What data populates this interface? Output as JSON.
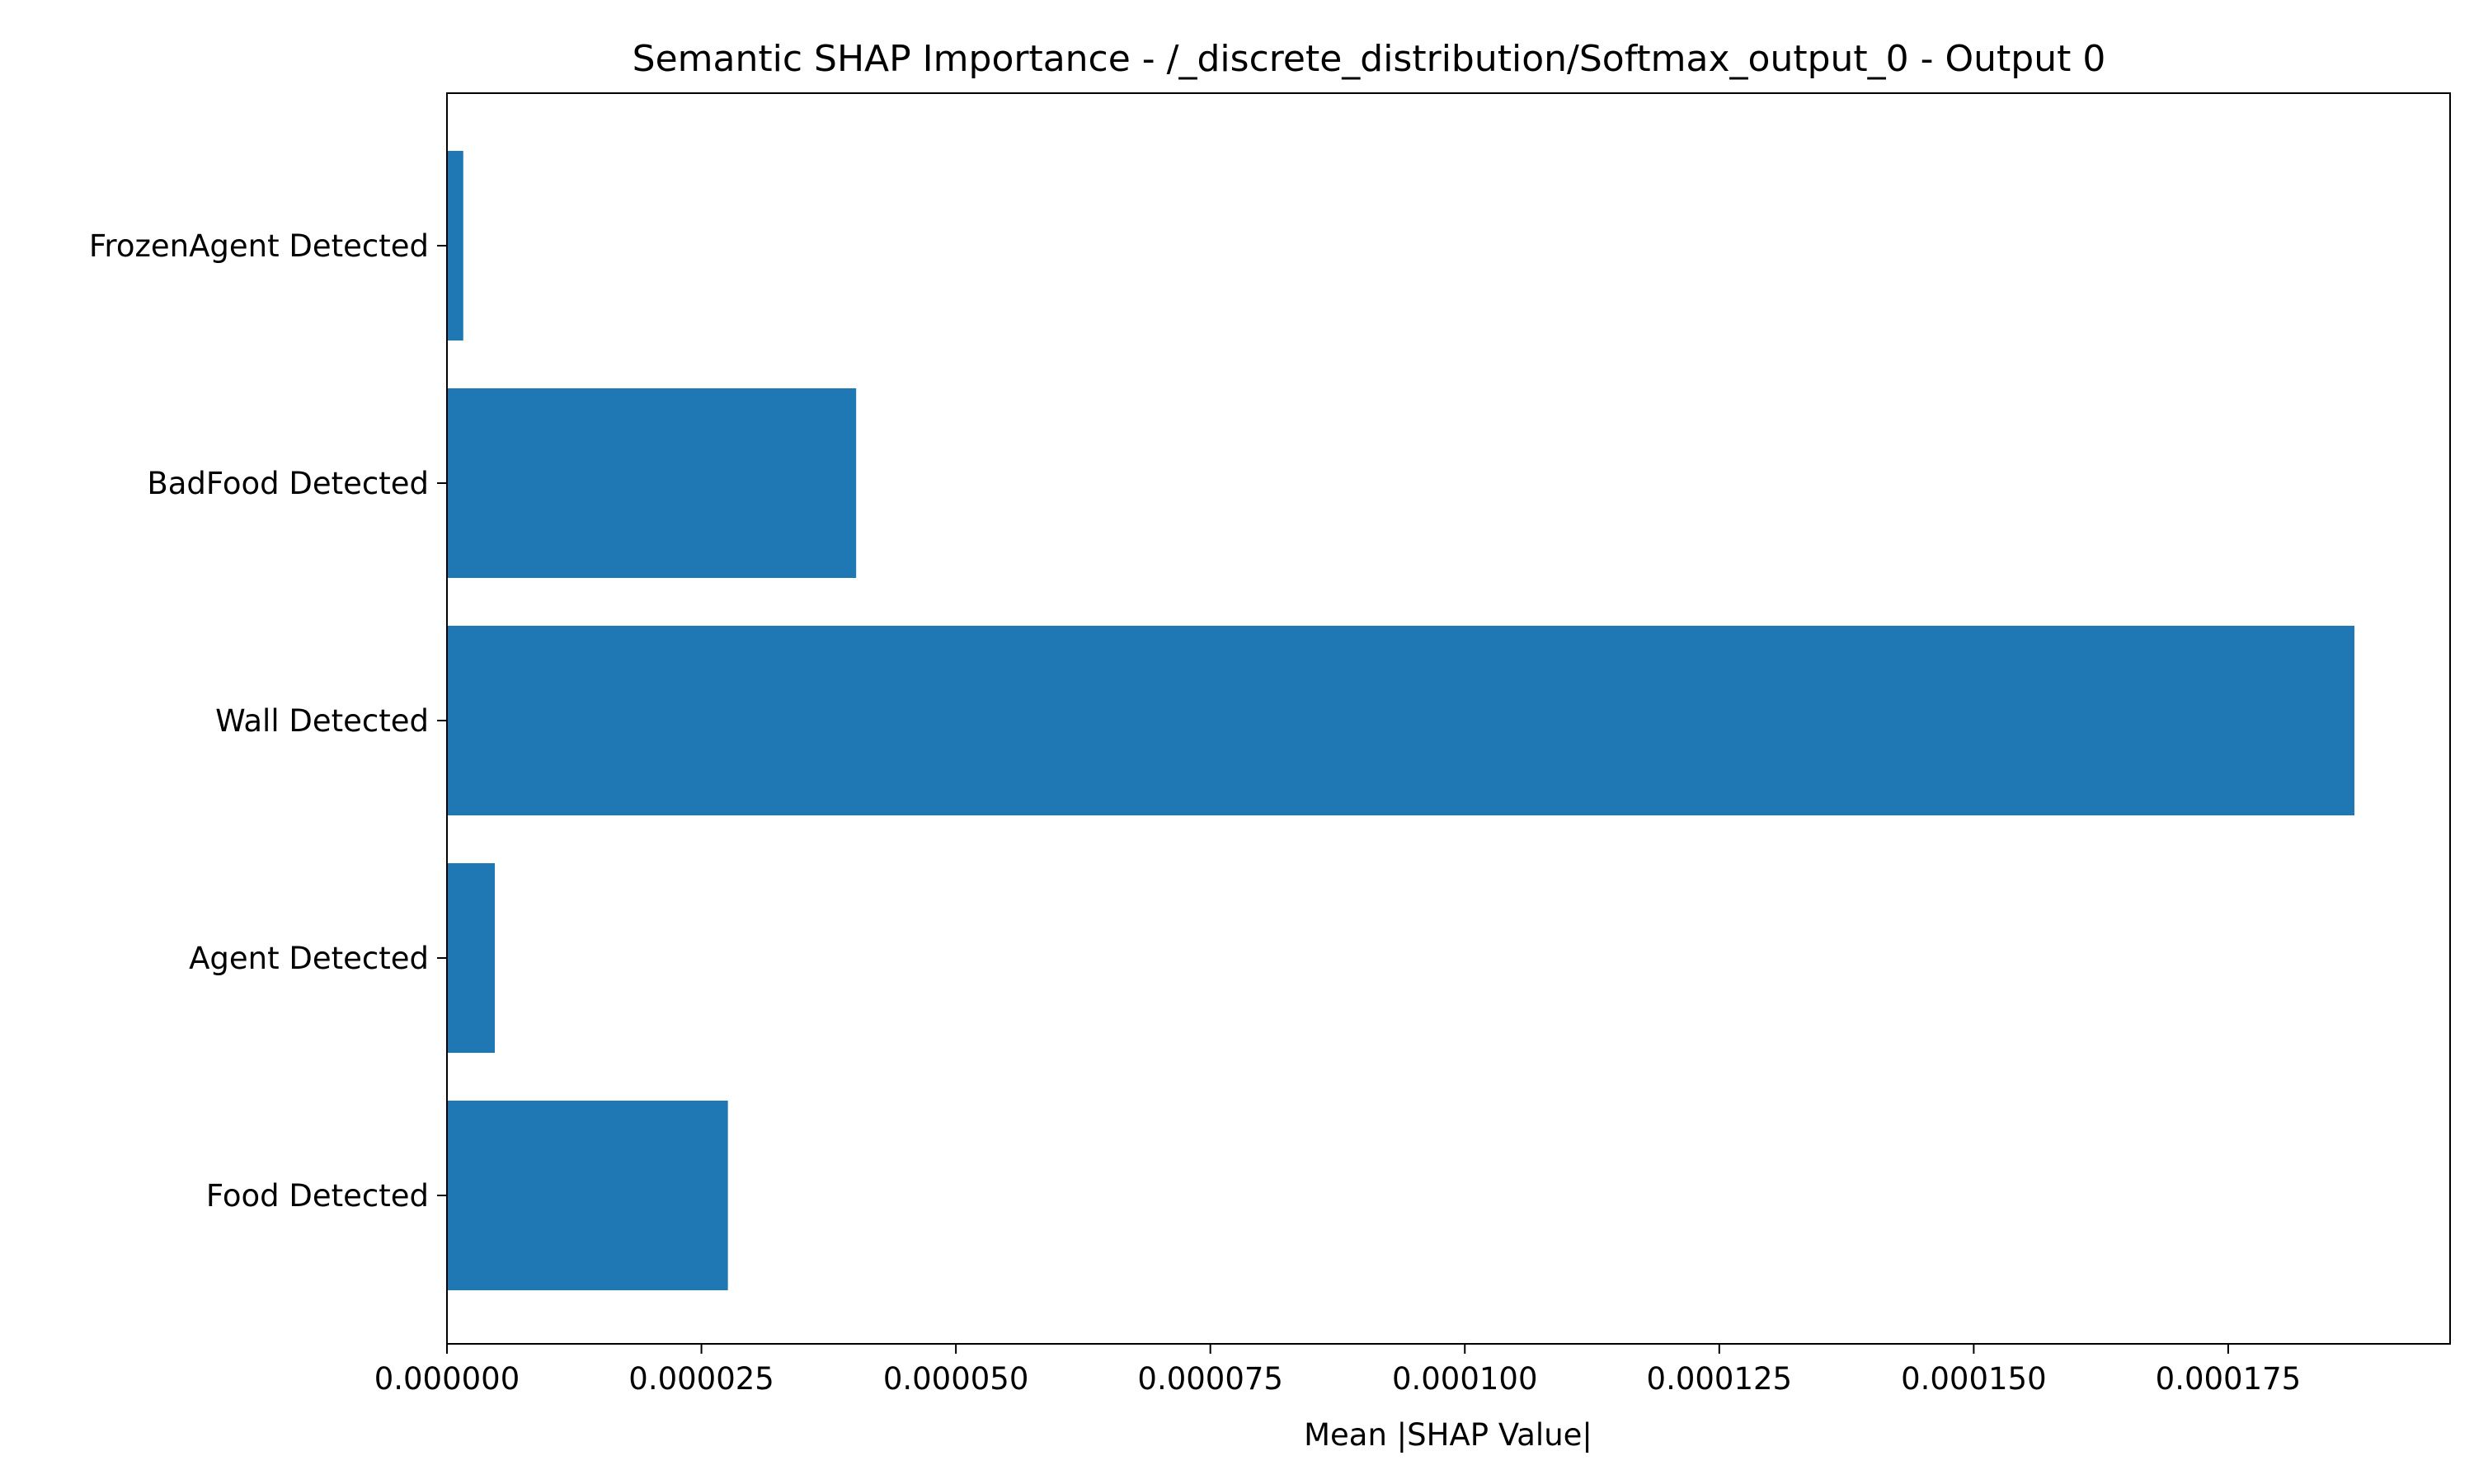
{
  "chart_data": {
    "type": "bar",
    "orientation": "horizontal",
    "title": "Semantic SHAP Importance - /_discrete_distribution/Softmax_output_0 - Output 0",
    "xlabel": "Mean |SHAP Value|",
    "ylabel": "",
    "categories": [
      "FrozenAgent Detected",
      "BadFood Detected",
      "Wall Detected",
      "Agent Detected",
      "Food Detected"
    ],
    "values": [
      1.6e-06,
      4.02e-05,
      0.0001874,
      4.7e-06,
      2.76e-05
    ],
    "xlim": [
      0,
      0.0001968
    ],
    "xticks": [
      0,
      2.5e-05,
      5e-05,
      7.5e-05,
      0.0001,
      0.000125,
      0.00015,
      0.000175
    ],
    "xtick_labels": [
      "0.000000",
      "0.000025",
      "0.000050",
      "0.000075",
      "0.000100",
      "0.000125",
      "0.000150",
      "0.000175"
    ],
    "bar_color": "#1f77b4",
    "grid": false,
    "legend": "none"
  }
}
